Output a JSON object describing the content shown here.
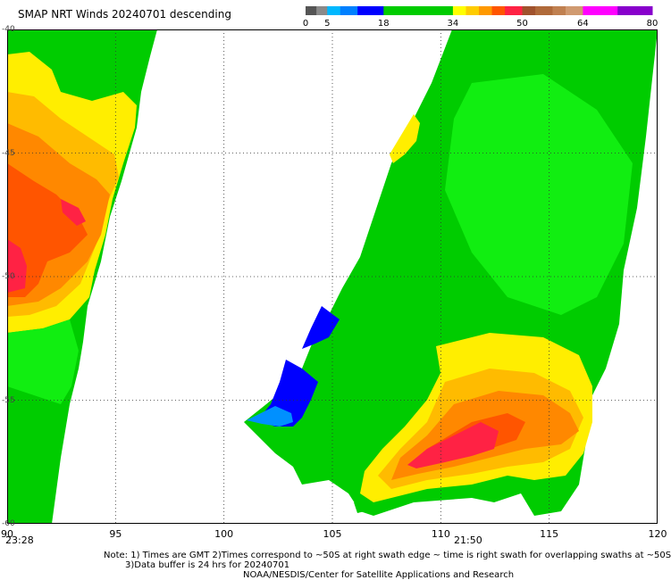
{
  "header": {
    "title": "SMAP NRT Winds  20240701 descending"
  },
  "colorbar": {
    "labels": [
      "0",
      "5",
      "18",
      "34",
      "50",
      "64",
      "80"
    ],
    "segments": [
      {
        "from": 0,
        "to": 2.5,
        "color": "#555555"
      },
      {
        "from": 2.5,
        "to": 5,
        "color": "#8a8a8a"
      },
      {
        "from": 5,
        "to": 8,
        "color": "#00b8ff"
      },
      {
        "from": 8,
        "to": 12,
        "color": "#0080ff"
      },
      {
        "from": 12,
        "to": 18,
        "color": "#0000ff"
      },
      {
        "from": 18,
        "to": 34,
        "color": "#00cc00"
      },
      {
        "from": 34,
        "to": 37,
        "color": "#ffff00"
      },
      {
        "from": 37,
        "to": 40,
        "color": "#ffcc00"
      },
      {
        "from": 40,
        "to": 43,
        "color": "#ff9900"
      },
      {
        "from": 43,
        "to": 46,
        "color": "#ff5500"
      },
      {
        "from": 46,
        "to": 50,
        "color": "#ff2244"
      },
      {
        "from": 50,
        "to": 53,
        "color": "#a0522d"
      },
      {
        "from": 53,
        "to": 57,
        "color": "#b06a3a"
      },
      {
        "from": 57,
        "to": 60,
        "color": "#c08050"
      },
      {
        "from": 60,
        "to": 64,
        "color": "#d09a70"
      },
      {
        "from": 64,
        "to": 72,
        "color": "#ff00ff"
      },
      {
        "from": 72,
        "to": 80,
        "color": "#8800cc"
      }
    ]
  },
  "map": {
    "lon_range": [
      90,
      120
    ],
    "lon_ticks": [
      90,
      95,
      100,
      105,
      110,
      115,
      120
    ],
    "lon_labels": [
      "90",
      "95",
      "100",
      "105",
      "110",
      "115",
      "120"
    ],
    "lat_labels": [
      "-40",
      "-45",
      "-50",
      "-55",
      "-60"
    ],
    "lat_ticks": [
      -40,
      -45,
      -50,
      -55,
      -60
    ],
    "lat_range": [
      -60,
      -40
    ],
    "swath_times": [
      "23:28",
      "21:50"
    ]
  },
  "footer": {
    "note_line1": "Note: 1) Times are GMT 2)Times correspond to ~50S at right swath edge ~ time is right swath for overlapping swaths at ~50S",
    "note_line2": "3)Data buffer is 24 hrs for 20240701",
    "credit": "NOAA/NESDIS/Center for Satellite Applications and Research"
  },
  "palette": {
    "green": "#00cc00",
    "bright_green": "#11ee11",
    "yellow": "#ffee00",
    "orange": "#ff9900",
    "red": "#ff2244",
    "blue": "#0000ff",
    "light_blue": "#0090ff"
  }
}
